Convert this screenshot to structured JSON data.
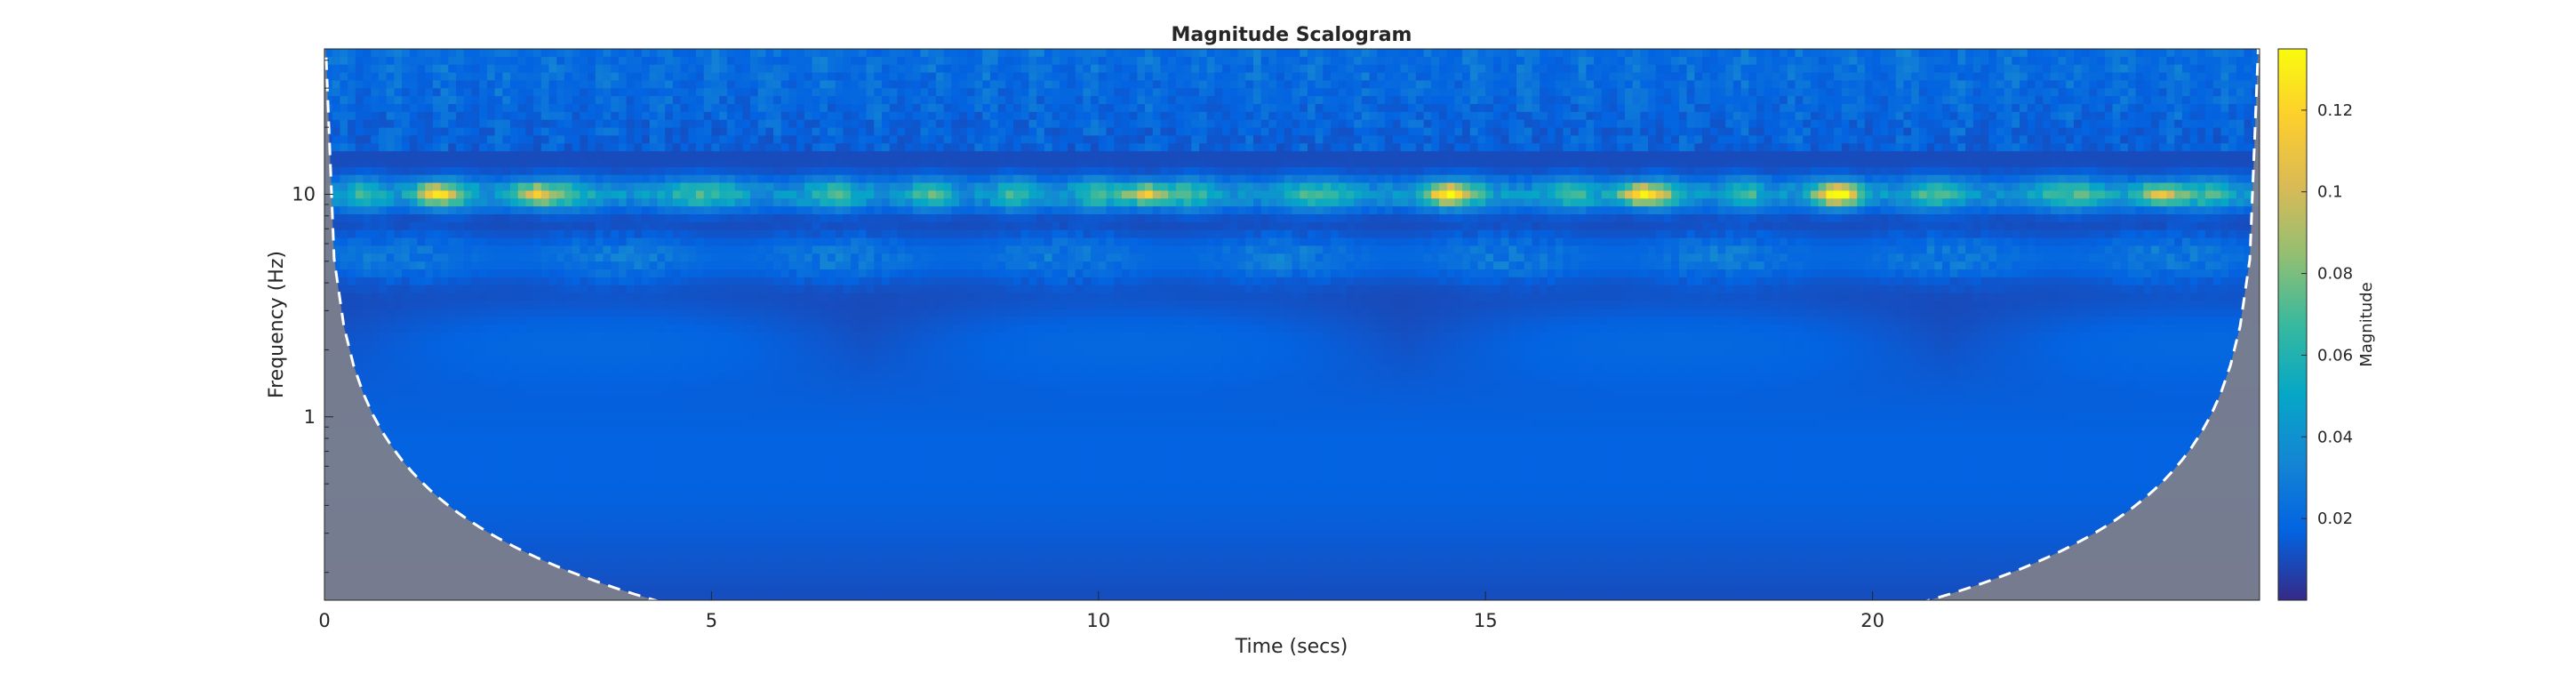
{
  "chart_data": {
    "type": "heatmap",
    "title": "Magnitude Scalogram",
    "xlabel": "Time (secs)",
    "ylabel": "Frequency (Hz)",
    "xlim": [
      0,
      25
    ],
    "ylim": [
      0.15,
      45
    ],
    "yscale": "log",
    "x_ticks": [
      0,
      5,
      10,
      15,
      20
    ],
    "y_ticks": [
      1,
      10
    ],
    "colorbar": {
      "label": "Magnitude",
      "range": [
        0,
        0.135
      ],
      "ticks": [
        0.02,
        0.04,
        0.06,
        0.08,
        0.1,
        0.12
      ],
      "colormap": "parula"
    },
    "dominant_band_hz": 10,
    "hot_spots": [
      {
        "t": 1.4,
        "f": 10,
        "magnitude": 0.1
      },
      {
        "t": 2.7,
        "f": 10,
        "magnitude": 0.09
      },
      {
        "t": 10.6,
        "f": 10,
        "magnitude": 0.1
      },
      {
        "t": 14.5,
        "f": 10,
        "magnitude": 0.1
      },
      {
        "t": 17.0,
        "f": 10,
        "magnitude": 0.11
      },
      {
        "t": 19.6,
        "f": 10,
        "magnitude": 0.11
      },
      {
        "t": 23.7,
        "f": 10,
        "magnitude": 0.1
      }
    ],
    "cone_of_influence": "dashed white line; region outside cone shaded gray"
  },
  "colors": {
    "background": "#ffffff",
    "cone_shade": "#7f7f8a",
    "cone_line": "#ffffff",
    "axis": "#262626"
  }
}
